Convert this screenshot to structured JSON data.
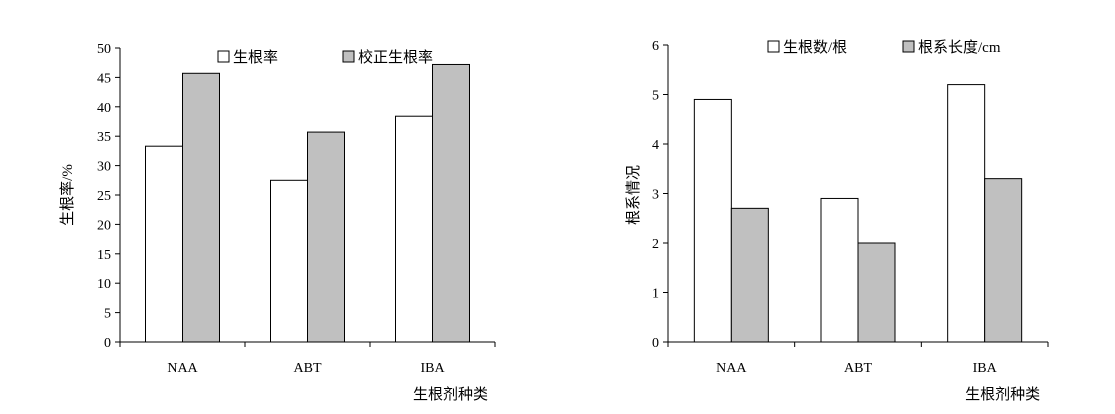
{
  "chart_data": [
    {
      "type": "bar",
      "title": "",
      "categories": [
        "NAA",
        "ABT",
        "IBA"
      ],
      "series": [
        {
          "name": "生根率",
          "values": [
            33.3,
            27.5,
            38.4
          ],
          "color": "#ffffff"
        },
        {
          "name": "校正生根率",
          "values": [
            45.7,
            35.7,
            47.2
          ],
          "color": "#c0c0c0"
        }
      ],
      "xlabel": "生根剂种类",
      "ylabel": "生根率/%",
      "ylim": [
        0,
        50
      ],
      "yticks": [
        0,
        5,
        10,
        15,
        20,
        25,
        30,
        35,
        40,
        45,
        50
      ],
      "grid": false,
      "legend": "top"
    },
    {
      "type": "bar",
      "title": "",
      "categories": [
        "NAA",
        "ABT",
        "IBA"
      ],
      "series": [
        {
          "name": "生根数/根",
          "values": [
            4.9,
            2.9,
            5.2
          ],
          "color": "#ffffff"
        },
        {
          "name": "根系长度/cm",
          "values": [
            2.7,
            2.0,
            3.3
          ],
          "color": "#c0c0c0"
        }
      ],
      "xlabel": "生根剂种类",
      "ylabel": "根系情况",
      "ylim": [
        0,
        6
      ],
      "yticks": [
        0,
        1,
        2,
        3,
        4,
        5,
        6
      ],
      "grid": false,
      "legend": "top"
    }
  ]
}
